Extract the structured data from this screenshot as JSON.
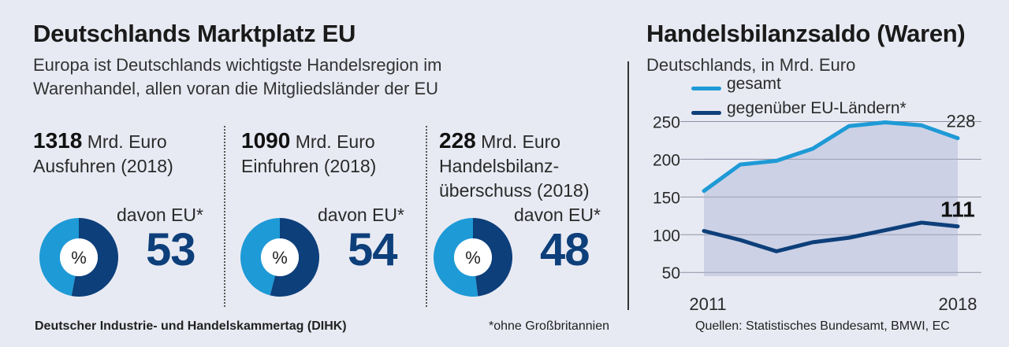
{
  "left": {
    "title": "Deutschlands Marktplatz EU",
    "subtitle_line1": "Europa ist Deutschlands wichtigste Handelsregion im",
    "subtitle_line2": "Warenhandel, allen voran die Mitgliedsländer der EU",
    "stats": [
      {
        "value": "1318",
        "unit": "Mrd. Euro",
        "label_line1": "Ausfuhren (2018)",
        "label_line2": "",
        "davon_label": "davon EU*",
        "pie_symbol": "%",
        "eu_share": "53"
      },
      {
        "value": "1090",
        "unit": "Mrd. Euro",
        "label_line1": "Einfuhren (2018)",
        "label_line2": "",
        "davon_label": "davon EU*",
        "pie_symbol": "%",
        "eu_share": "54"
      },
      {
        "value": "228",
        "unit": "Mrd. Euro",
        "label_line1": "Handelsbilanz-",
        "label_line2": "überschuss (2018)",
        "davon_label": "davon EU*",
        "pie_symbol": "%",
        "eu_share": "48"
      }
    ]
  },
  "right": {
    "title": "Handelsbilanzsaldo (Waren)",
    "subtitle": "Deutschlands, in Mrd. Euro",
    "legend": [
      {
        "label": "gesamt",
        "color": "#1e9ad6"
      },
      {
        "label": "gegenüber EU-Ländern*",
        "color": "#0d3f7a"
      }
    ],
    "label_total_end": "228",
    "label_eu_end": "111"
  },
  "footer": {
    "source_org": "Deutscher Industrie- und Handelskammertag (DIHK)",
    "note": "*ohne Großbritannien",
    "sources": "Quellen: Statistisches Bundesamt, BMWI, EC"
  },
  "colors": {
    "background": "#e8eaf3",
    "eu_share": "#0d3f7a",
    "rest_share": "#1e9ad6",
    "area_fill": "#c9cee3"
  },
  "chart_data": [
    {
      "type": "pie",
      "title": "Ausfuhren (2018)",
      "slices": [
        {
          "label": "EU",
          "value": 53
        },
        {
          "label": "Rest",
          "value": 47
        }
      ]
    },
    {
      "type": "pie",
      "title": "Einfuhren (2018)",
      "slices": [
        {
          "label": "EU",
          "value": 54
        },
        {
          "label": "Rest",
          "value": 46
        }
      ]
    },
    {
      "type": "pie",
      "title": "Handelsbilanzüberschuss (2018)",
      "slices": [
        {
          "label": "EU",
          "value": 48
        },
        {
          "label": "Rest",
          "value": 52
        }
      ]
    },
    {
      "type": "line",
      "title": "Handelsbilanzsaldo (Waren)",
      "x": [
        2011,
        2012,
        2013,
        2014,
        2015,
        2016,
        2017,
        2018
      ],
      "x_tick_labels": [
        "2011",
        "2018"
      ],
      "y_ticks": [
        50,
        100,
        150,
        200,
        250
      ],
      "ylim": [
        45,
        262
      ],
      "series": [
        {
          "name": "gesamt",
          "values": [
            158,
            193,
            198,
            214,
            244,
            249,
            245,
            228
          ],
          "area_fill": true
        },
        {
          "name": "gegenüber EU-Ländern*",
          "values": [
            105,
            93,
            78,
            90,
            96,
            106,
            116,
            111
          ]
        }
      ],
      "grid": true,
      "legend_position": "top-left"
    }
  ]
}
